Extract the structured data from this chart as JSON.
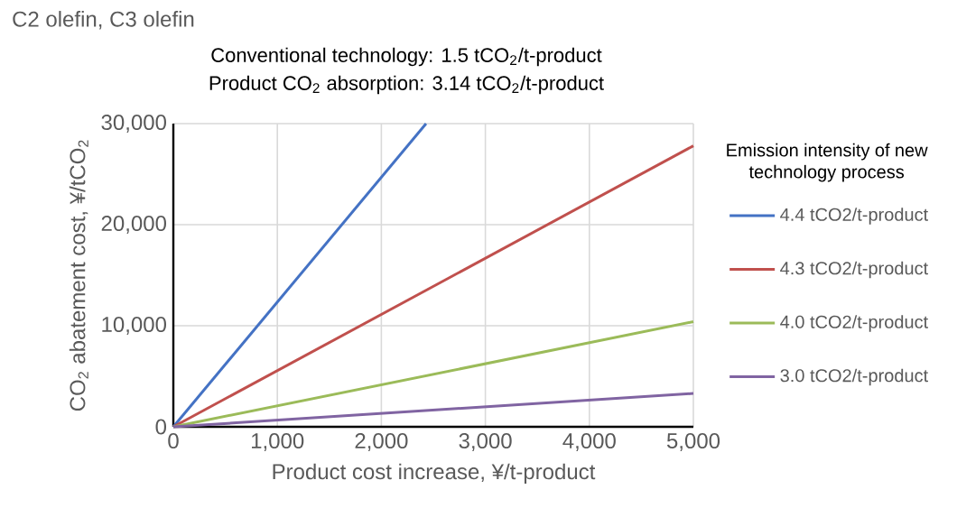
{
  "chart_data": {
    "type": "line",
    "title": "C2 olefin, C3 olefin",
    "annotations": [
      "Conventional technology: 1.5 tCO$_{2}$/t-product",
      "Product CO$_{2}$ absorption: 3.14 tCO$_{2}$/t-product"
    ],
    "xlabel": "Product cost increase, ¥/t-product",
    "ylabel": "CO$_{2}$ abatement cost, ¥/tCO$_{2}$",
    "legend_title": "Emission intensity of new technology process",
    "series": [
      {
        "name": "4.4 tCO2/t-product",
        "color": "#4472c4",
        "x": [
          0,
          2430
        ],
        "values": [
          0,
          30000
        ]
      },
      {
        "name": "4.3 tCO2/t-product",
        "color": "#c0504d",
        "x": [
          0,
          5000
        ],
        "values": [
          0,
          27800
        ]
      },
      {
        "name": "4.0 tCO2/t-product",
        "color": "#9bbb59",
        "x": [
          0,
          5000
        ],
        "values": [
          0,
          10400
        ]
      },
      {
        "name": "3.0 tCO2/t-product",
        "color": "#8064a2",
        "x": [
          0,
          5000
        ],
        "values": [
          0,
          3300
        ]
      }
    ],
    "xlim": [
      0,
      5000
    ],
    "ylim": [
      0,
      30000
    ],
    "xticks": [
      0,
      {
        "value": 1000,
        "label": "1,000"
      },
      {
        "value": 2000,
        "label": "2,000"
      },
      {
        "value": 3000,
        "label": "3,000"
      },
      {
        "value": 4000,
        "label": "4,000"
      },
      {
        "value": 5000,
        "label": "5,000"
      }
    ],
    "yticks": [
      0,
      {
        "value": 10000,
        "label": "10,000"
      },
      {
        "value": 20000,
        "label": "20,000"
      },
      {
        "value": 30000,
        "label": "30,000"
      }
    ],
    "grid": true,
    "legend": "right",
    "marker": "none",
    "line_style": "solid"
  }
}
